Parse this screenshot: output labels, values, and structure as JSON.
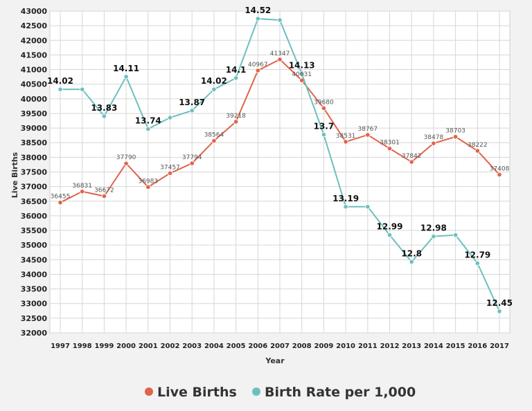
{
  "chart_data": {
    "type": "line",
    "xlabel": "Year",
    "ylabel": "Live Births",
    "ylim": [
      32000,
      43000
    ],
    "y_ticks": [
      32000,
      32500,
      33000,
      33500,
      34000,
      34500,
      35000,
      35500,
      36000,
      36500,
      37000,
      37500,
      38000,
      38500,
      39000,
      39500,
      40000,
      40500,
      41000,
      41500,
      42000,
      42500,
      43000
    ],
    "categories": [
      "1997",
      "1998",
      "1999",
      "2000",
      "2001",
      "2002",
      "2003",
      "2004",
      "2005",
      "2006",
      "2007",
      "2008",
      "2009",
      "2010",
      "2011",
      "2012",
      "2013",
      "2014",
      "2015",
      "2016",
      "2017"
    ],
    "grid": true,
    "legend_position": "bottom",
    "series": [
      {
        "name": "Live Births",
        "color": "#e0634a",
        "axis": "left",
        "values": [
          36455,
          36831,
          36672,
          37790,
          36983,
          37457,
          37794,
          38564,
          39218,
          40967,
          41347,
          40631,
          39680,
          38531,
          38767,
          38301,
          37842,
          38478,
          38703,
          38222,
          37408
        ],
        "labels": [
          "36455",
          "36831",
          "36672",
          "37790",
          "36983",
          "37457",
          "37794",
          "38564",
          "39218",
          "40967",
          "41347",
          "40631",
          "39680",
          "38531",
          "38767",
          "38301",
          "37842",
          "38478",
          "38703",
          "38222",
          "37408"
        ]
      },
      {
        "name": "Birth Rate per 1,000",
        "color": "#6dbfbf",
        "axis": "secondary",
        "values": [
          14.02,
          14.02,
          13.83,
          14.11,
          13.74,
          13.82,
          13.87,
          14.02,
          14.1,
          14.52,
          14.51,
          14.13,
          13.7,
          13.19,
          13.19,
          12.99,
          12.8,
          12.98,
          12.99,
          12.79,
          12.45
        ],
        "labels": [
          "14.02",
          null,
          "13.83",
          "14.11",
          "13.74",
          null,
          "13.87",
          "14.02",
          "14.1",
          "14.52",
          null,
          "14.13",
          "13.7",
          "13.19",
          null,
          "12.99",
          "12.8",
          "12.98",
          null,
          "12.79",
          "12.45"
        ]
      }
    ]
  }
}
